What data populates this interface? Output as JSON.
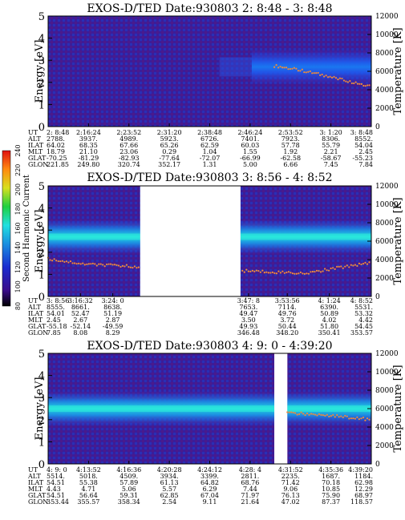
{
  "chart_data": [
    {
      "type": "heatmap",
      "title": "EXOS-D/TED   Date:930803  2: 8:48 - 3: 8:48",
      "ylabel": "Energy [eV]",
      "y2label": "Temperature [K]",
      "ylim": [
        0,
        5
      ],
      "y2lim": [
        0,
        12000
      ],
      "yticks": [
        "0",
        "1",
        "2",
        "3",
        "4",
        "5"
      ],
      "y2ticks": [
        "0",
        "2000",
        "4000",
        "6000",
        "8000",
        "10000",
        "12000"
      ],
      "gaps": [],
      "band": {
        "x_from": 0.63,
        "center": 2.7,
        "intensity": "blue",
        "fade_in_from": 0.53
      },
      "temperature_trace": [
        [
          0.7,
          2.75
        ],
        [
          0.78,
          2.55
        ],
        [
          0.86,
          2.3
        ],
        [
          0.94,
          2.0
        ],
        [
          1.0,
          1.8
        ]
      ],
      "table": {
        "row_labels": [
          "UT",
          "ALT",
          "ILAT",
          "MLT",
          "GLAT",
          "GLON"
        ],
        "columns": [
          [
            "2: 8:48",
            "2788.",
            "64.02",
            "18.79",
            "-70.25",
            "221.85"
          ],
          [
            "2:16:24",
            "3937.",
            "68.35",
            "21.10",
            "-81.29",
            "249.80"
          ],
          [
            "2:23:52",
            "4989.",
            "67.66",
            "23.06",
            "-82.93",
            "320.74"
          ],
          [
            "2:31:20",
            "5923.",
            "65.26",
            "0.29",
            "-77.64",
            "352.17"
          ],
          [
            "2:38:48",
            "6726.",
            "62.59",
            "1.04",
            "-72.07",
            "1.31"
          ],
          [
            "2:46:24",
            "7401.",
            "60.03",
            "1.55",
            "-66.99",
            "5.00"
          ],
          [
            "2:53:52",
            "7923.",
            "57.78",
            "1.92",
            "-62.58",
            "6.66"
          ],
          [
            "3: 1:20",
            "8306.",
            "55.79",
            "2.21",
            "-58.67",
            "7.45"
          ],
          [
            "3: 8:48",
            "8552.",
            "54.04",
            "2.45",
            "-55.23",
            "7.84"
          ]
        ]
      }
    },
    {
      "type": "heatmap",
      "title": "EXOS-D/TED   Date:930803  3: 8:56 - 4: 8:52",
      "ylabel": "Energy [eV]",
      "y2label": "Temperature [K]",
      "ylim": [
        0,
        5
      ],
      "y2lim": [
        0,
        12000
      ],
      "yticks": [
        "0",
        "1",
        "2",
        "3",
        "4",
        "5"
      ],
      "y2ticks": [
        "0",
        "2000",
        "4000",
        "6000",
        "8000",
        "10000",
        "12000"
      ],
      "gaps": [
        [
          0.285,
          0.595
        ]
      ],
      "band": {
        "x_from": 0.0,
        "center": 2.7,
        "intensity": "cyan",
        "fade_in_from": 0.0
      },
      "temperature_trace": [
        [
          0.0,
          1.7
        ],
        [
          0.12,
          1.45
        ],
        [
          0.28,
          1.35
        ],
        [
          0.62,
          1.15
        ],
        [
          0.8,
          1.05
        ],
        [
          1.0,
          1.55
        ]
      ],
      "colorbar": {
        "label": "Second Harmonic Current",
        "min": 80,
        "max": 240,
        "ticks": [
          "80",
          "100",
          "120",
          "140",
          "160",
          "180",
          "200",
          "220",
          "240"
        ]
      },
      "table": {
        "row_labels": [
          "UT",
          "ALT",
          "ILAT",
          "MLT",
          "GLAT",
          "GLON"
        ],
        "columns": [
          [
            "3: 8:56",
            "8555.",
            "54.01",
            "2.45",
            "-55.18",
            "7.85"
          ],
          [
            "3:16:32",
            "8661.",
            "52.47",
            "2.67",
            "-52.14",
            "8.08"
          ],
          [
            "3:24: 0",
            "8638.",
            "51.19",
            "2.87",
            "-49.59",
            "8.29"
          ],
          [
            "3:47: 8",
            "7653.",
            "49.47",
            "3.50",
            "49.93",
            "346.48"
          ],
          [
            "3:53:56",
            "7114.",
            "49.76",
            "3.72",
            "50.44",
            "348.20"
          ],
          [
            "4: 1:24",
            "6390.",
            "50.89",
            "4.02",
            "51.80",
            "350.41"
          ],
          [
            "4: 8:52",
            "5531.",
            "53.32",
            "4.42",
            "54.45",
            "353.57"
          ]
        ]
      }
    },
    {
      "type": "heatmap",
      "title": "EXOS-D/TED   Date:930803  4: 9: 0 - 4:39:20",
      "ylabel": "Energy [eV]",
      "y2label": "Temperature [K]",
      "ylim": [
        0,
        5
      ],
      "y2lim": [
        0,
        12000
      ],
      "yticks": [
        "0",
        "1",
        "2",
        "3",
        "4",
        "5"
      ],
      "y2ticks": [
        "0",
        "2000",
        "4000",
        "6000",
        "8000",
        "10000",
        "12000"
      ],
      "gaps": [
        [
          0.7,
          0.74
        ]
      ],
      "band": {
        "x_from": 0.0,
        "center": 2.5,
        "intensity": "cyan",
        "fade_in_from": 0.0
      },
      "temperature_trace": [
        [
          0.74,
          2.3
        ],
        [
          0.82,
          2.25
        ],
        [
          0.9,
          2.15
        ],
        [
          1.0,
          2.0
        ]
      ],
      "table": {
        "row_labels": [
          "UT",
          "ALT",
          "ILAT",
          "MLT",
          "GLAT",
          "GLON"
        ],
        "columns": [
          [
            "4: 9: 0",
            "5514.",
            "54.51",
            "4.43",
            "54.51",
            "353.44"
          ],
          [
            "4:13:52",
            "5018.",
            "55.38",
            "4.71",
            "56.64",
            "355.57"
          ],
          [
            "4:16:36",
            "4509.",
            "57.89",
            "5.06",
            "59.31",
            "358.34"
          ],
          [
            "4:20:28",
            "3934.",
            "61.13",
            "5.57",
            "62.85",
            "2.54"
          ],
          [
            "4:24:12",
            "3399.",
            "64.82",
            "6.29",
            "67.04",
            "9.11"
          ],
          [
            "4:28: 4",
            "2811.",
            "68.76",
            "7.44",
            "71.97",
            "21.64"
          ],
          [
            "4:31:52",
            "2235.",
            "71.42",
            "9.06",
            "76.13",
            "47.02"
          ],
          [
            "4:35:36",
            "1687.",
            "70.18",
            "10.85",
            "75.90",
            "87.37"
          ],
          [
            "4:39:20",
            "1184.",
            "62.98",
            "12.29",
            "68.97",
            "118.57"
          ]
        ]
      }
    }
  ]
}
